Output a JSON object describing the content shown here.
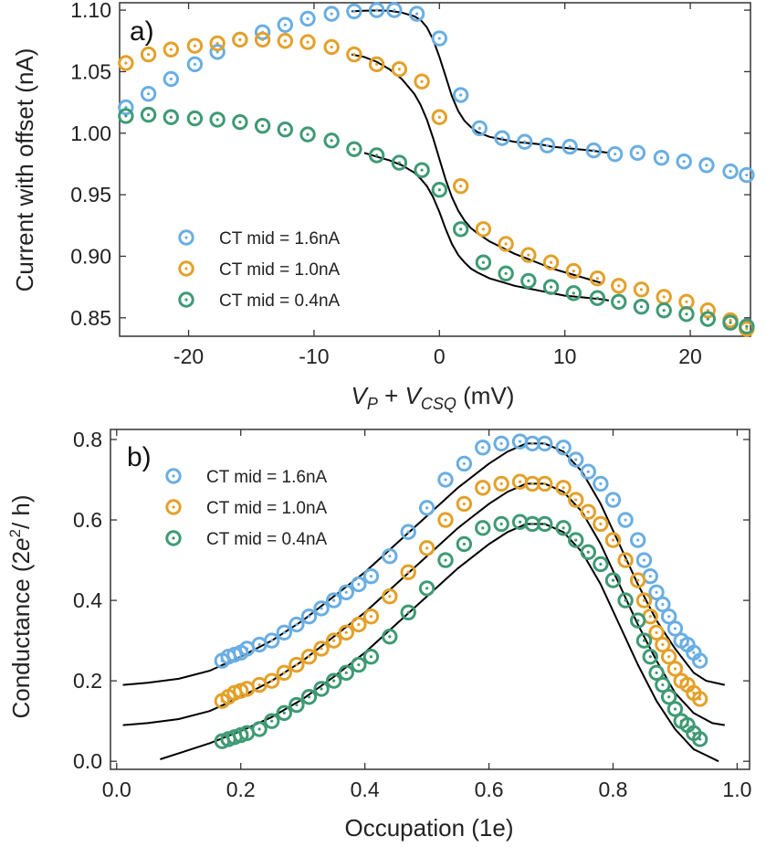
{
  "chart_data": [
    {
      "type": "scatter",
      "panel_label": "a)",
      "ylabel": "Current with offset (nA)",
      "xlabel": {
        "v": "V",
        "p": "P",
        "plus": " + ",
        "v2": "V",
        "csq": "CSQ",
        "unit": " (mV)"
      },
      "xlim": [
        -25.5,
        24.8
      ],
      "ylim": [
        0.835,
        1.106
      ],
      "xticks": [
        -20,
        -10,
        0,
        10,
        20
      ],
      "xticklabels": [
        "-20",
        "-10",
        "0",
        "10",
        "20"
      ],
      "yticks": [
        0.85,
        0.9,
        0.95,
        1.0,
        1.05,
        1.1
      ],
      "yticklabels": [
        "0.85",
        "0.90",
        "0.95",
        "1.00",
        "1.05",
        "1.10"
      ],
      "legend_position": "lower-left",
      "series": [
        {
          "name": "CT mid = 1.6nA",
          "color": "#6aaee2",
          "x": [
            -25.0,
            -23.2,
            -21.4,
            -19.5,
            -17.7,
            -15.9,
            -14.1,
            -12.3,
            -10.5,
            -8.6,
            -6.8,
            -5.0,
            -3.6,
            -1.8,
            0.0,
            1.7,
            3.2,
            5.0,
            6.8,
            8.6,
            10.4,
            12.3,
            14.0,
            15.8,
            17.7,
            19.5,
            21.3,
            23.2,
            24.5
          ],
          "y": [
            1.021,
            1.032,
            1.044,
            1.056,
            1.066,
            1.076,
            1.082,
            1.088,
            1.093,
            1.097,
            1.099,
            1.1,
            1.1,
            1.097,
            1.077,
            1.031,
            1.004,
            0.996,
            0.993,
            0.99,
            0.989,
            0.986,
            0.983,
            0.984,
            0.98,
            0.977,
            0.974,
            0.969,
            0.966
          ],
          "fit": {
            "x": [
              -7.0,
              -6.0,
              -5.0,
              -4.0,
              -3.0,
              -2.0,
              -1.5,
              -1.0,
              -0.5,
              0.0,
              0.5,
              1.0,
              1.5,
              2.0,
              2.5,
              3.0,
              4.0,
              5.0,
              6.0,
              7.0,
              8.0,
              9.0,
              10.0,
              11.0,
              12.0,
              13.5
            ],
            "y": [
              1.099,
              1.0995,
              1.0998,
              1.0995,
              1.098,
              1.095,
              1.092,
              1.086,
              1.076,
              1.062,
              1.046,
              1.03,
              1.018,
              1.01,
              1.005,
              1.001,
              0.997,
              0.995,
              0.993,
              0.992,
              0.991,
              0.989,
              0.988,
              0.987,
              0.986,
              0.984
            ]
          }
        },
        {
          "name": "CT mid = 1.0nA",
          "color": "#e3a12a",
          "x": [
            -25.0,
            -23.2,
            -21.4,
            -19.5,
            -17.7,
            -15.9,
            -14.1,
            -12.3,
            -10.5,
            -8.6,
            -6.8,
            -5.0,
            -3.2,
            -1.4,
            0.0,
            1.7,
            3.5,
            5.3,
            7.1,
            8.9,
            10.7,
            12.6,
            14.3,
            16.1,
            17.9,
            19.7,
            21.4,
            23.2,
            24.5
          ],
          "y": [
            1.057,
            1.064,
            1.068,
            1.071,
            1.073,
            1.076,
            1.076,
            1.075,
            1.074,
            1.07,
            1.064,
            1.056,
            1.052,
            1.042,
            1.013,
            0.957,
            0.922,
            0.91,
            0.901,
            0.895,
            0.888,
            0.882,
            0.876,
            0.873,
            0.867,
            0.863,
            0.856,
            0.848,
            0.841
          ],
          "fit": {
            "x": [
              -7.0,
              -6.0,
              -5.0,
              -4.0,
              -3.0,
              -2.0,
              -1.5,
              -1.0,
              -0.5,
              0.0,
              0.5,
              1.0,
              1.5,
              2.0,
              2.5,
              3.0,
              4.0,
              5.0,
              6.0,
              7.0,
              8.0,
              9.0,
              10.0,
              11.0,
              12.0,
              13.0
            ],
            "y": [
              1.064,
              1.062,
              1.058,
              1.052,
              1.044,
              1.032,
              1.023,
              1.011,
              0.996,
              0.979,
              0.962,
              0.948,
              0.937,
              0.929,
              0.923,
              0.919,
              0.912,
              0.907,
              0.902,
              0.898,
              0.894,
              0.89,
              0.887,
              0.884,
              0.881,
              0.878
            ]
          }
        },
        {
          "name": "CT mid = 0.4nA",
          "color": "#3f9a74",
          "x": [
            -25.0,
            -23.2,
            -21.4,
            -19.5,
            -17.7,
            -15.9,
            -14.1,
            -12.3,
            -10.5,
            -8.6,
            -6.8,
            -5.0,
            -3.2,
            -1.4,
            0.0,
            1.7,
            3.5,
            5.3,
            7.1,
            8.9,
            10.7,
            12.6,
            14.3,
            16.1,
            17.9,
            19.7,
            21.4,
            23.2,
            24.5
          ],
          "y": [
            1.014,
            1.015,
            1.013,
            1.012,
            1.011,
            1.009,
            1.006,
            1.003,
            0.999,
            0.994,
            0.987,
            0.982,
            0.976,
            0.97,
            0.954,
            0.922,
            0.895,
            0.886,
            0.88,
            0.875,
            0.87,
            0.866,
            0.863,
            0.859,
            0.856,
            0.853,
            0.849,
            0.846,
            0.843
          ],
          "fit": {
            "x": [
              -6.0,
              -5.0,
              -4.0,
              -3.0,
              -2.0,
              -1.5,
              -1.0,
              -0.5,
              0.0,
              0.5,
              1.0,
              1.5,
              2.0,
              2.5,
              3.0,
              4.0,
              5.0,
              6.0,
              7.0,
              8.0,
              9.0,
              10.0,
              11.0,
              12.0,
              13.0,
              13.5
            ],
            "y": [
              0.984,
              0.981,
              0.978,
              0.974,
              0.968,
              0.963,
              0.957,
              0.948,
              0.936,
              0.922,
              0.91,
              0.901,
              0.895,
              0.89,
              0.887,
              0.882,
              0.879,
              0.876,
              0.874,
              0.872,
              0.87,
              0.868,
              0.867,
              0.866,
              0.865,
              0.864
            ]
          }
        }
      ]
    },
    {
      "type": "scatter",
      "panel_label": "b)",
      "ylabel": {
        "main": "Conductance (2",
        "e": "e",
        "sup": "2",
        "tail": "/ h)"
      },
      "xlabel": "Occupation (1e)",
      "xlim": [
        -0.01,
        1.02
      ],
      "ylim": [
        -0.02,
        0.825
      ],
      "xticks": [
        0.0,
        0.2,
        0.4,
        0.6,
        0.8,
        1.0
      ],
      "xticklabels": [
        "0.0",
        "0.2",
        "0.4",
        "0.6",
        "0.8",
        "1.0"
      ],
      "yticks": [
        0.0,
        0.2,
        0.4,
        0.6,
        0.8
      ],
      "yticklabels": [
        "0.0",
        "0.2",
        "0.4",
        "0.6",
        "0.8"
      ],
      "legend_position": "top-left",
      "series": [
        {
          "name": "CT mid = 1.6nA",
          "color": "#6aaee2",
          "x": [
            0.17,
            0.18,
            0.19,
            0.2,
            0.21,
            0.23,
            0.25,
            0.27,
            0.29,
            0.31,
            0.33,
            0.35,
            0.37,
            0.39,
            0.41,
            0.44,
            0.47,
            0.5,
            0.53,
            0.56,
            0.59,
            0.62,
            0.65,
            0.67,
            0.69,
            0.72,
            0.74,
            0.76,
            0.78,
            0.8,
            0.82,
            0.84,
            0.85,
            0.86,
            0.87,
            0.88,
            0.89,
            0.9,
            0.91,
            0.92,
            0.93,
            0.94
          ],
          "y": [
            0.25,
            0.26,
            0.265,
            0.27,
            0.28,
            0.29,
            0.3,
            0.32,
            0.34,
            0.36,
            0.38,
            0.4,
            0.42,
            0.44,
            0.46,
            0.51,
            0.57,
            0.63,
            0.7,
            0.74,
            0.78,
            0.79,
            0.795,
            0.79,
            0.79,
            0.78,
            0.75,
            0.72,
            0.69,
            0.65,
            0.6,
            0.55,
            0.5,
            0.46,
            0.42,
            0.39,
            0.36,
            0.33,
            0.3,
            0.29,
            0.27,
            0.25
          ]
        },
        {
          "name": "CT mid = 1.0nA",
          "color": "#e3a12a",
          "x": [
            0.17,
            0.18,
            0.19,
            0.2,
            0.21,
            0.23,
            0.25,
            0.27,
            0.29,
            0.31,
            0.33,
            0.35,
            0.37,
            0.39,
            0.41,
            0.44,
            0.47,
            0.5,
            0.53,
            0.56,
            0.59,
            0.62,
            0.65,
            0.67,
            0.69,
            0.72,
            0.74,
            0.76,
            0.78,
            0.8,
            0.82,
            0.84,
            0.85,
            0.86,
            0.87,
            0.88,
            0.89,
            0.9,
            0.91,
            0.92,
            0.93,
            0.94
          ],
          "y": [
            0.15,
            0.16,
            0.17,
            0.175,
            0.18,
            0.19,
            0.2,
            0.22,
            0.24,
            0.26,
            0.28,
            0.3,
            0.32,
            0.34,
            0.36,
            0.41,
            0.47,
            0.53,
            0.6,
            0.64,
            0.68,
            0.69,
            0.695,
            0.69,
            0.69,
            0.68,
            0.65,
            0.62,
            0.59,
            0.55,
            0.5,
            0.45,
            0.4,
            0.36,
            0.32,
            0.29,
            0.26,
            0.23,
            0.2,
            0.19,
            0.17,
            0.155
          ]
        },
        {
          "name": "CT mid = 0.4nA",
          "color": "#3f9a74",
          "x": [
            0.17,
            0.18,
            0.19,
            0.2,
            0.21,
            0.23,
            0.25,
            0.27,
            0.29,
            0.31,
            0.33,
            0.35,
            0.37,
            0.39,
            0.41,
            0.44,
            0.47,
            0.5,
            0.53,
            0.56,
            0.59,
            0.62,
            0.65,
            0.67,
            0.69,
            0.72,
            0.74,
            0.76,
            0.78,
            0.8,
            0.82,
            0.84,
            0.85,
            0.86,
            0.87,
            0.88,
            0.89,
            0.9,
            0.91,
            0.92,
            0.93,
            0.94
          ],
          "y": [
            0.05,
            0.055,
            0.06,
            0.065,
            0.07,
            0.08,
            0.1,
            0.12,
            0.14,
            0.16,
            0.18,
            0.2,
            0.22,
            0.24,
            0.26,
            0.31,
            0.37,
            0.43,
            0.5,
            0.54,
            0.58,
            0.59,
            0.595,
            0.59,
            0.59,
            0.58,
            0.55,
            0.52,
            0.49,
            0.45,
            0.4,
            0.35,
            0.3,
            0.26,
            0.22,
            0.19,
            0.16,
            0.13,
            0.1,
            0.09,
            0.07,
            0.055
          ]
        }
      ],
      "fits": [
        {
          "x": [
            0.01,
            0.05,
            0.1,
            0.15,
            0.2,
            0.25,
            0.3,
            0.35,
            0.4,
            0.45,
            0.5,
            0.55,
            0.6,
            0.63,
            0.66,
            0.69,
            0.72,
            0.75,
            0.78,
            0.81,
            0.84,
            0.87,
            0.9,
            0.93,
            0.95,
            0.98
          ],
          "y": [
            0.19,
            0.195,
            0.205,
            0.225,
            0.26,
            0.3,
            0.35,
            0.41,
            0.47,
            0.54,
            0.61,
            0.68,
            0.74,
            0.77,
            0.79,
            0.79,
            0.77,
            0.72,
            0.64,
            0.54,
            0.44,
            0.35,
            0.28,
            0.22,
            0.2,
            0.19
          ]
        },
        {
          "x": [
            0.01,
            0.05,
            0.1,
            0.15,
            0.2,
            0.25,
            0.3,
            0.35,
            0.4,
            0.45,
            0.5,
            0.55,
            0.6,
            0.63,
            0.66,
            0.69,
            0.72,
            0.75,
            0.78,
            0.81,
            0.84,
            0.87,
            0.9,
            0.93,
            0.96,
            0.98
          ],
          "y": [
            0.09,
            0.095,
            0.105,
            0.125,
            0.16,
            0.2,
            0.25,
            0.31,
            0.37,
            0.44,
            0.51,
            0.58,
            0.64,
            0.67,
            0.69,
            0.69,
            0.67,
            0.62,
            0.54,
            0.44,
            0.34,
            0.25,
            0.17,
            0.12,
            0.095,
            0.09
          ]
        },
        {
          "x": [
            0.07,
            0.1,
            0.15,
            0.2,
            0.25,
            0.3,
            0.35,
            0.4,
            0.45,
            0.5,
            0.55,
            0.6,
            0.63,
            0.66,
            0.69,
            0.72,
            0.75,
            0.78,
            0.81,
            0.84,
            0.87,
            0.9,
            0.93,
            0.97
          ],
          "y": [
            0.005,
            0.02,
            0.045,
            0.075,
            0.11,
            0.155,
            0.21,
            0.27,
            0.34,
            0.41,
            0.48,
            0.54,
            0.57,
            0.59,
            0.59,
            0.57,
            0.52,
            0.44,
            0.34,
            0.24,
            0.15,
            0.08,
            0.03,
            0.0
          ]
        }
      ]
    }
  ]
}
